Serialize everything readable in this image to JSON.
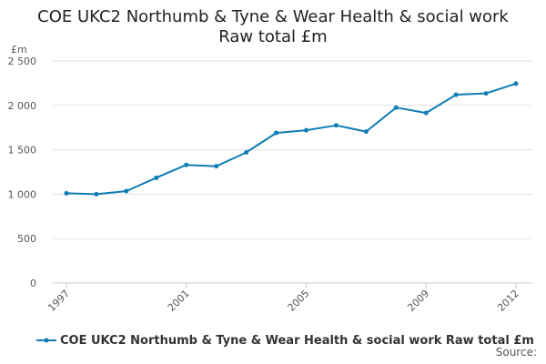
{
  "chart_data": {
    "type": "line",
    "title_line1": "COE UKC2 Northumb & Tyne & Wear Health & social work",
    "title_line2": "Raw total £m",
    "ylabel": "£m",
    "xlabel": "",
    "ylim": [
      0,
      2500
    ],
    "yticks": [
      0,
      500,
      1000,
      1500,
      2000,
      2500
    ],
    "ytick_labels": [
      "0",
      "500",
      "1 000",
      "1 500",
      "2 000",
      "2 500"
    ],
    "x": [
      1997,
      1998,
      1999,
      2000,
      2001,
      2002,
      2003,
      2004,
      2005,
      2006,
      2007,
      2008,
      2009,
      2010,
      2011,
      2012
    ],
    "xticks": [
      1997,
      2001,
      2005,
      2009,
      2012
    ],
    "series": [
      {
        "name": "COE UKC2 Northumb & Tyne & Wear Health & social work Raw total £m",
        "values": [
          1010,
          1000,
          1035,
          1185,
          1330,
          1315,
          1470,
          1690,
          1720,
          1775,
          1705,
          1975,
          1915,
          2120,
          2135,
          2245
        ]
      }
    ],
    "grid": true,
    "legend_position": "bottom-left"
  },
  "source_label": "Source:",
  "colors": {
    "series": "#0e7cb5",
    "grid": "#e3e3e3",
    "axis": "#cccccc"
  }
}
